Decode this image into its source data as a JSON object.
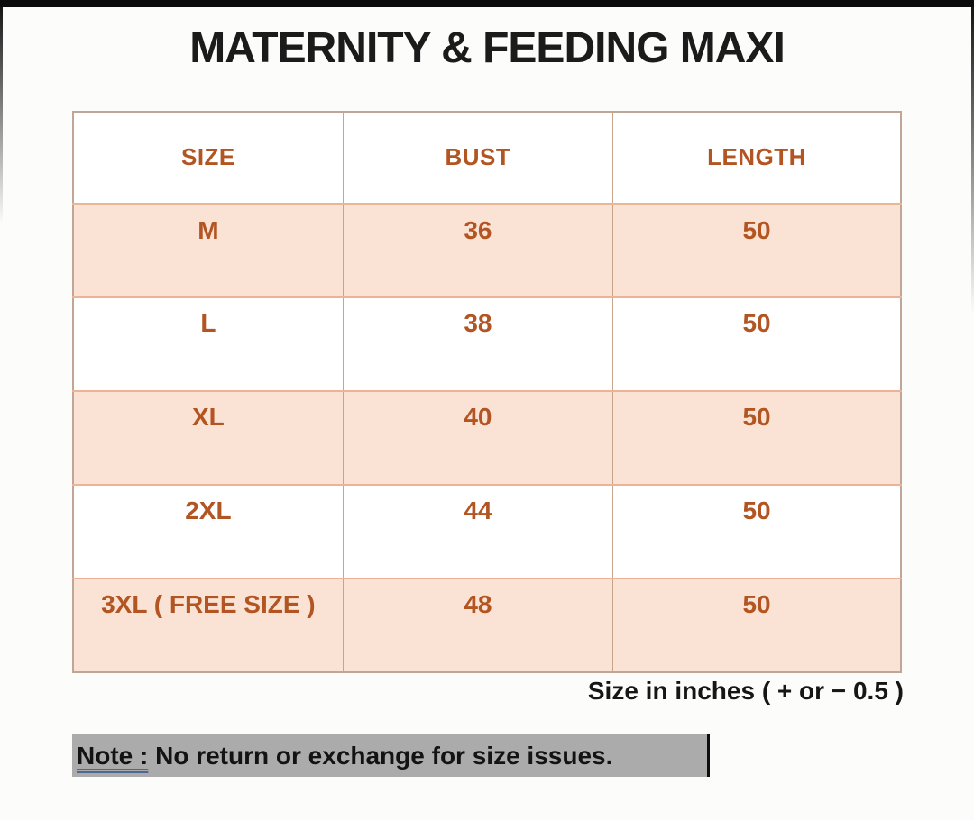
{
  "title": "MATERNITY & FEEDING MAXI",
  "size_chart": {
    "headers": [
      "SIZE",
      "BUST",
      "LENGTH"
    ],
    "rows": [
      {
        "cells": [
          "M",
          "36",
          "50"
        ]
      },
      {
        "cells": [
          "L",
          "38",
          "50"
        ]
      },
      {
        "cells": [
          "XL",
          "40",
          "50"
        ]
      },
      {
        "cells": [
          "2XL",
          "44",
          "50"
        ]
      },
      {
        "cells": [
          "3XL ( FREE SIZE )",
          "48",
          "50"
        ]
      }
    ]
  },
  "footnote": "Size in inches ( + or − 0.5 )",
  "note": {
    "label": "Note :",
    "text": "No return or exchange for size issues."
  },
  "colors": {
    "accent_text": "#b25522",
    "row_shade": "#fae3d4",
    "note_highlight": "#ababab",
    "note_underline": "#4a6a94",
    "title_text": "#1b1b1b"
  },
  "chart_data": {
    "type": "table",
    "title": "MATERNITY & FEEDING MAXI",
    "columns": [
      "SIZE",
      "BUST",
      "LENGTH"
    ],
    "rows": [
      [
        "M",
        36,
        50
      ],
      [
        "L",
        38,
        50
      ],
      [
        "XL",
        40,
        50
      ],
      [
        "2XL",
        44,
        50
      ],
      [
        "3XL ( FREE SIZE )",
        48,
        50
      ]
    ],
    "units": "inches",
    "tolerance": "+ or − 0.5",
    "note": "No return or exchange for size issues."
  }
}
